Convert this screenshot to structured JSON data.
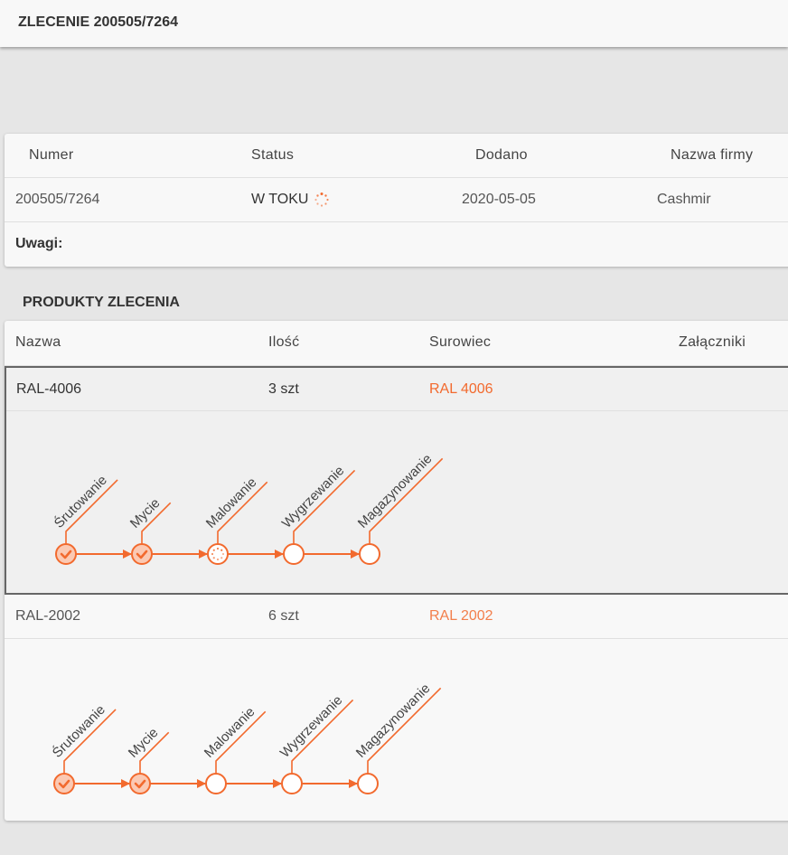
{
  "header": {
    "title": "ZLECENIE 200505/7264"
  },
  "order": {
    "columns": [
      "Numer",
      "Status",
      "Dodano",
      "Nazwa firmy"
    ],
    "numer": "200505/7264",
    "status": "W TOKU",
    "status_icon": "spinner-icon",
    "dodano": "2020-05-05",
    "firma": "Cashmir",
    "uwagi_label": "Uwagi:"
  },
  "products": {
    "title": "PRODUKTY ZLECENIA",
    "columns": [
      "Nazwa",
      "Ilość",
      "Surowiec",
      "Załączniki"
    ],
    "accent": "#f26a2e",
    "items": [
      {
        "nazwa": "RAL-4006",
        "ilosc": "3 szt",
        "surowiec": "RAL 4006",
        "selected": true,
        "steps": [
          {
            "label": "Śrutowanie",
            "state": "done"
          },
          {
            "label": "Mycie",
            "state": "done"
          },
          {
            "label": "Malowanie",
            "state": "in-progress"
          },
          {
            "label": "Wygrzewanie",
            "state": "pending"
          },
          {
            "label": "Magazynowanie",
            "state": "pending"
          }
        ]
      },
      {
        "nazwa": "RAL-2002",
        "ilosc": "6 szt",
        "surowiec": "RAL 2002",
        "selected": false,
        "steps": [
          {
            "label": "Śrutowanie",
            "state": "done"
          },
          {
            "label": "Mycie",
            "state": "done"
          },
          {
            "label": "Malowanie",
            "state": "pending"
          },
          {
            "label": "Wygrzewanie",
            "state": "pending"
          },
          {
            "label": "Magazynowanie",
            "state": "pending"
          }
        ]
      }
    ]
  }
}
